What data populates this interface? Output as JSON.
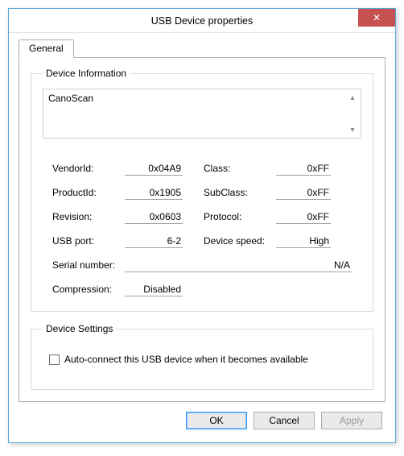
{
  "window": {
    "title": "USB Device properties"
  },
  "tabs": {
    "general": "General"
  },
  "device_info": {
    "legend": "Device Information",
    "name": "CanoScan",
    "fields": {
      "vendorid_label": "VendorId:",
      "vendorid_value": "0x04A9",
      "productid_label": "ProductId:",
      "productid_value": "0x1905",
      "revision_label": "Revision:",
      "revision_value": "0x0603",
      "usbport_label": "USB port:",
      "usbport_value": "6-2",
      "class_label": "Class:",
      "class_value": "0xFF",
      "subclass_label": "SubClass:",
      "subclass_value": "0xFF",
      "protocol_label": "Protocol:",
      "protocol_value": "0xFF",
      "speed_label": "Device speed:",
      "speed_value": "High",
      "serial_label": "Serial number:",
      "serial_value": "N/A",
      "compression_label": "Compression:",
      "compression_value": "Disabled"
    }
  },
  "device_settings": {
    "legend": "Device Settings",
    "autoconnect_label": "Auto-connect this USB device when it becomes available",
    "autoconnect_checked": false
  },
  "buttons": {
    "ok": "OK",
    "cancel": "Cancel",
    "apply": "Apply"
  },
  "colors": {
    "window_border": "#5aa6d8",
    "close_bg": "#c75050",
    "tab_border": "#acacac",
    "field_border": "#d8d8d8",
    "underline": "#a0a0a0"
  }
}
